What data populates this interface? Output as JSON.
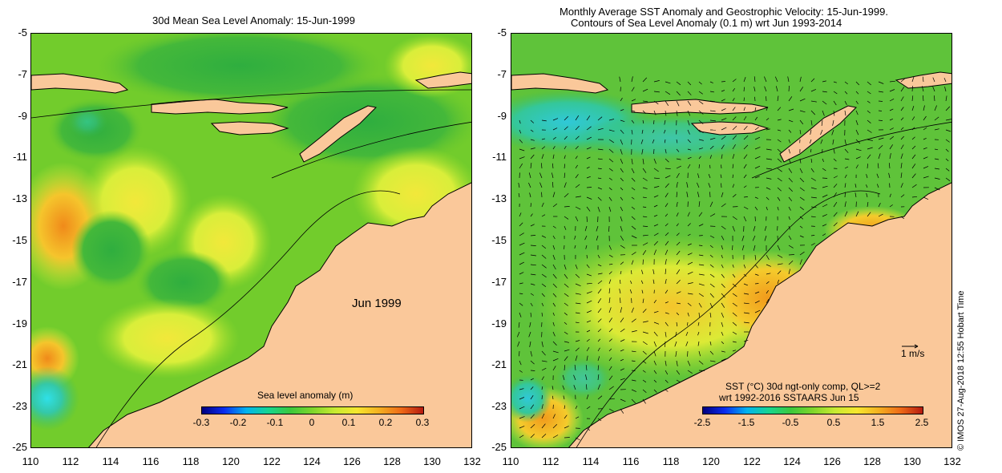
{
  "left_panel": {
    "title": "30d Mean Sea Level Anomaly: 15-Jun-1999",
    "annotation": "Jun 1999",
    "colorbar": {
      "label": "Sea level anomaly (m)",
      "ticks": [
        "-0.3",
        "-0.2",
        "-0.1",
        "0",
        "0.1",
        "0.2",
        "0.3"
      ]
    }
  },
  "right_panel": {
    "title_line1": "Monthly Average SST Anomaly  and Geostrophic Velocity: 15-Jun-1999.",
    "title_line2": "Contours of Sea Level Anomaly (0.1 m) wrt Jun 1993-2014",
    "velocity_scale": "1 m/s",
    "legend_line1": "SST (°C) 30d ngt-only comp, QL>=2",
    "legend_line2": "wrt 1992-2016 SSTAARS Jun 15",
    "colorbar": {
      "ticks": [
        "-2.5",
        "-1.5",
        "-0.5",
        "0.5",
        "1.5",
        "2.5"
      ]
    }
  },
  "axes": {
    "y_ticks": [
      "-5",
      "-7",
      "-9",
      "-11",
      "-13",
      "-15",
      "-17",
      "-19",
      "-21",
      "-23",
      "-25"
    ],
    "x_ticks": [
      "110",
      "112",
      "114",
      "116",
      "118",
      "120",
      "122",
      "124",
      "126",
      "128",
      "130",
      "132"
    ]
  },
  "copyright": "© IMOS 27-Aug-2018 12:55 Hobart Time",
  "colors": {
    "land": "#fac89a",
    "ocean_base": "#7ed321",
    "accent_yellow": "#e8f53c"
  }
}
